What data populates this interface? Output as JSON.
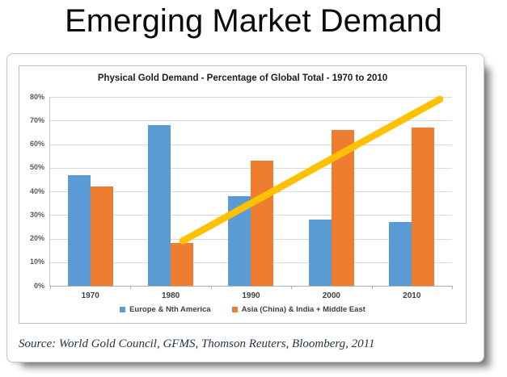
{
  "page": {
    "title": "Emerging Market Demand"
  },
  "chart_data": {
    "type": "bar",
    "title": "Physical Gold Demand - Percentage of Global Total - 1970 to 2010",
    "categories": [
      "1970",
      "1980",
      "1990",
      "2000",
      "2010"
    ],
    "series": [
      {
        "name": "Europe & Nth America",
        "color": "#5B9BD5",
        "values": [
          47,
          68,
          38,
          28,
          27
        ]
      },
      {
        "name": "Asia (China) & India + Middle East",
        "color": "#ED7D31",
        "values": [
          42,
          18,
          53,
          66,
          67
        ]
      }
    ],
    "xlabel": "",
    "ylabel": "",
    "ylim": [
      0,
      80
    ],
    "ytick_step": 10,
    "ytick_format": "percent",
    "grid": true,
    "legend_position": "bottom",
    "annotation": {
      "type": "trendline",
      "color": "#FFC000",
      "stroke_width": 8.5,
      "description": "Upward trend arrow from Asia demand at 1980 (~18%) rising past 2010 (~79%)",
      "start": {
        "x_frac": 0.332,
        "value": 19
      },
      "end": {
        "x_frac": 0.972,
        "value": 79
      }
    }
  },
  "footer": {
    "source": "Source: World Gold Council, GFMS, Thomson Reuters, Bloomberg, 2011"
  }
}
